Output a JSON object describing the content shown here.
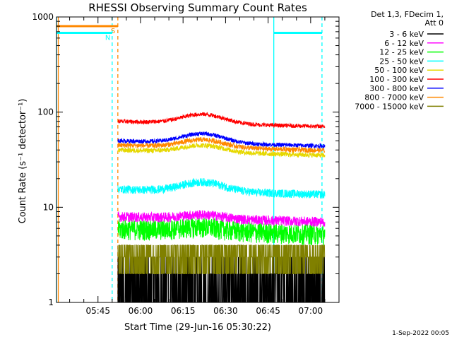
{
  "chart_data": {
    "type": "line",
    "title": "RHESSI Observing Summary Count Rates",
    "xlabel": "Start Time (29-Jun-16 05:30:22)",
    "ylabel": "Count Rate (s⁻¹ detector⁻¹)",
    "yscale": "log",
    "ylim": [
      1,
      1000
    ],
    "xlim": [
      "05:30:22",
      "07:10:00"
    ],
    "x_tick_labels": [
      "05:45",
      "06:00",
      "06:15",
      "06:30",
      "06:45",
      "07:00"
    ],
    "y_tick_labels": [
      "1",
      "10",
      "100",
      "1000"
    ],
    "legend_title": [
      "Det 1,3, FDecim 1,",
      "Att 0"
    ],
    "legend_position": "right",
    "grid": false,
    "footer": "1-Sep-2022 00:05",
    "data_start": "05:52:00",
    "data_end": "07:05:00",
    "series": [
      {
        "name": "3 - 6 keV",
        "color": "#000000",
        "base": 1.6,
        "noise": 0.55,
        "bump": 1.0
      },
      {
        "name": "6 - 12 keV",
        "color": "#ff00ff",
        "base": 8.0,
        "noise": 0.12,
        "bump": 1.1
      },
      {
        "name": "12 - 25 keV",
        "color": "#00ff00",
        "base": 6.0,
        "noise": 0.25,
        "bump": 1.1
      },
      {
        "name": "25 - 50 keV",
        "color": "#00ffff",
        "base": 15.5,
        "noise": 0.1,
        "bump": 1.25
      },
      {
        "name": "50 - 100 keV",
        "color": "#e6d800",
        "base": 40.0,
        "noise": 0.06,
        "bump": 1.18
      },
      {
        "name": "100 - 300 keV",
        "color": "#ff0000",
        "base": 80.0,
        "noise": 0.05,
        "bump": 1.25
      },
      {
        "name": "300 - 800 keV",
        "color": "#0000ff",
        "base": 50.0,
        "noise": 0.05,
        "bump": 1.25
      },
      {
        "name": "800 - 7000 keV",
        "color": "#ff8800",
        "base": 45.0,
        "noise": 0.06,
        "bump": 1.2
      },
      {
        "name": "7000 - 15000 keV",
        "color": "#808000",
        "base": 3.0,
        "noise": 0.3,
        "bump": 1.0
      }
    ],
    "flags": [
      {
        "label": "S",
        "color": "#ff8800",
        "start": "05:30:22",
        "end": "05:52:00",
        "value": 800
      },
      {
        "label": "N",
        "color": "#00ffff",
        "start": "05:30:22",
        "end": "05:50:00",
        "value": 680
      },
      {
        "label": "",
        "color": "#00ffff",
        "start": "06:47:00",
        "end": "07:04:00",
        "value": 680
      }
    ],
    "markers": [
      {
        "time": "05:30:22",
        "color": "#00ffff",
        "style": "solid"
      },
      {
        "time": "05:31:00",
        "color": "#ff8800",
        "style": "solid"
      },
      {
        "time": "05:50:00",
        "color": "#00ffff",
        "style": "dashed"
      },
      {
        "time": "05:52:00",
        "color": "#ff8800",
        "style": "dashed"
      },
      {
        "time": "06:47:00",
        "color": "#00ffff",
        "style": "solid"
      },
      {
        "time": "07:04:00",
        "color": "#00ffff",
        "style": "dashed"
      }
    ]
  }
}
